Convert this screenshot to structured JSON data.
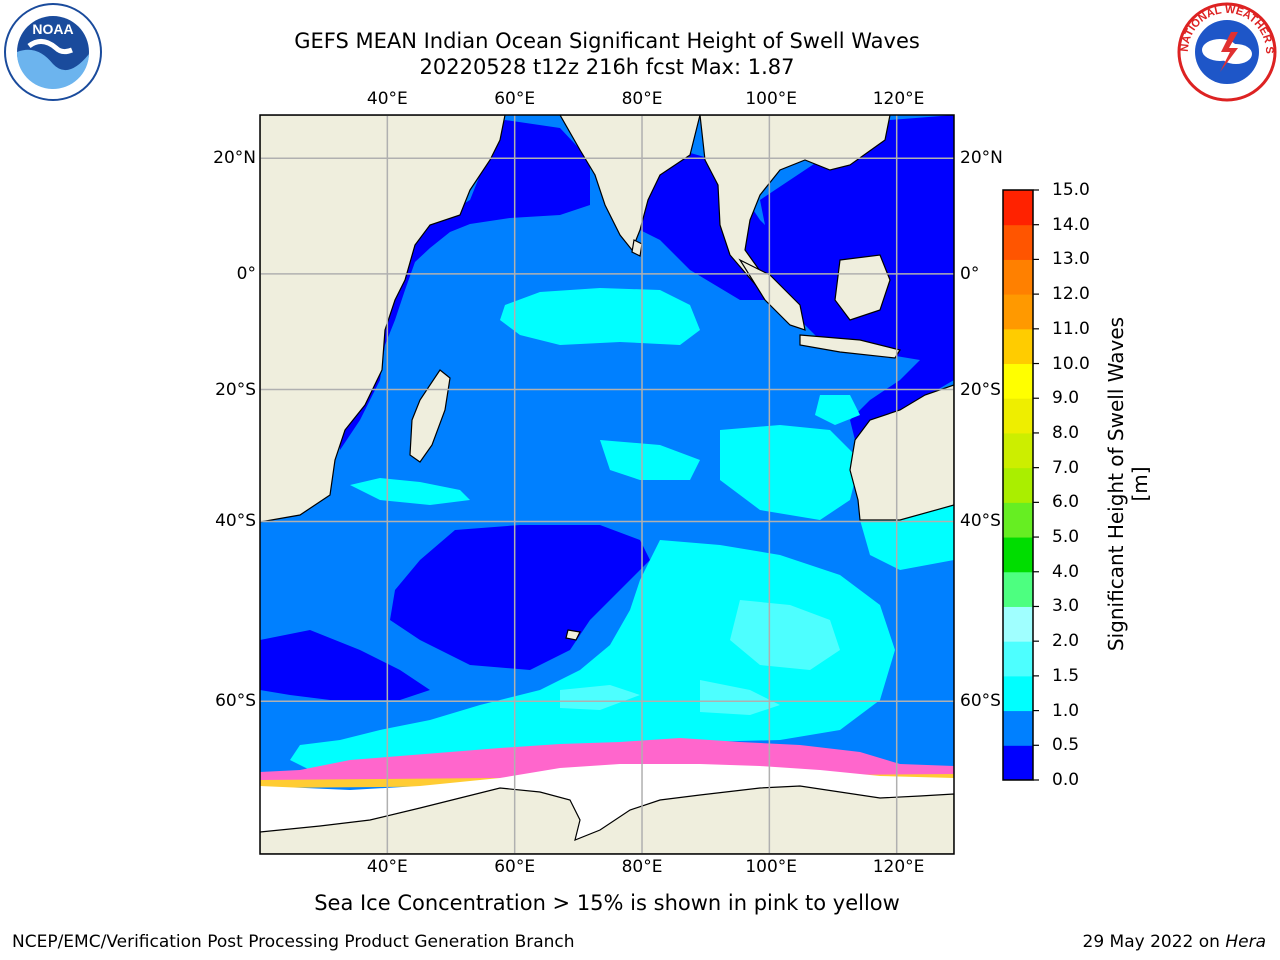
{
  "title": {
    "line1": "GEFS MEAN Indian Ocean Significant Height of Swell Waves",
    "line2": "20220528 t12z 216h fcst   Max: 1.87"
  },
  "map": {
    "lon_range": [
      20,
      129
    ],
    "lat_range": [
      -71,
      27
    ],
    "lon_ticks": [
      {
        "lon": 40,
        "label": "40°E"
      },
      {
        "lon": 60,
        "label": "60°E"
      },
      {
        "lon": 80,
        "label": "80°E"
      },
      {
        "lon": 100,
        "label": "100°E"
      },
      {
        "lon": 120,
        "label": "120°E"
      }
    ],
    "lat_ticks": [
      {
        "lat": 20,
        "label": "20°N"
      },
      {
        "lat": 0,
        "label": "0°"
      },
      {
        "lat": -20,
        "label": "20°S"
      },
      {
        "lat": -40,
        "label": "40°S"
      },
      {
        "lat": -60,
        "label": "60°S"
      }
    ],
    "grid": true,
    "colors": {
      "land": "#efeedd",
      "sea_ice": "#ffffff",
      "ice_edge_pink": "#ff66cc",
      "ice_edge_yellow": "#ffcc33"
    }
  },
  "colorbar": {
    "title": "Significant Height of Swell Waves [m]",
    "levels": [
      "0.0",
      "0.5",
      "1.0",
      "1.5",
      "2.0",
      "3.0",
      "4.0",
      "5.0",
      "6.0",
      "7.0",
      "8.0",
      "9.0",
      "10.0",
      "11.0",
      "12.0",
      "13.0",
      "14.0",
      "15.0"
    ],
    "colors": [
      "#0000ff",
      "#0080ff",
      "#00ffff",
      "#4dffff",
      "#a0ffff",
      "#4dff80",
      "#00dd00",
      "#66ee22",
      "#aaee00",
      "#ccee00",
      "#eeee00",
      "#ffff00",
      "#ffcc00",
      "#ff9900",
      "#ff8000",
      "#ff5500",
      "#ff2200"
    ]
  },
  "ice_note": "Sea Ice Concentration > 15% is shown in pink to yellow",
  "footer": {
    "left": "NCEP/EMC/Verification Post Processing Product Generation Branch",
    "right_date": "29 May 2022 on",
    "right_host": "Hera"
  },
  "logos": {
    "left": "noaa-logo",
    "left_text": "NOAA",
    "right": "nws-logo",
    "right_text": "NATIONAL WEATHER SERVICE"
  }
}
